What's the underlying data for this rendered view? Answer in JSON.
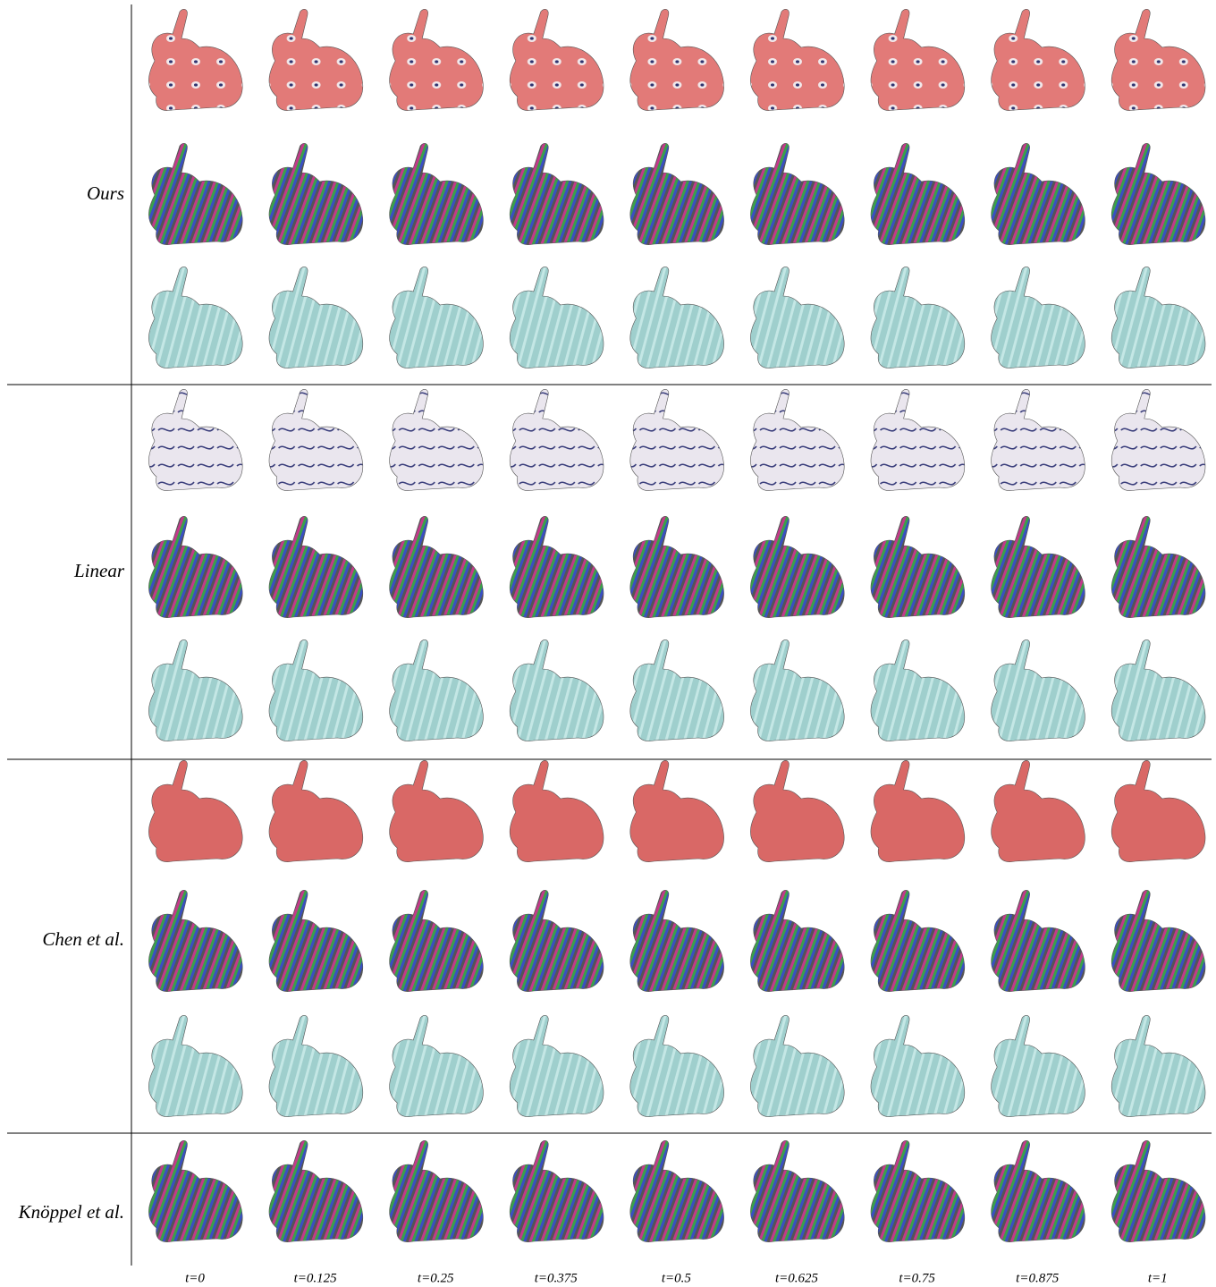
{
  "row_labels": [
    "Ours",
    "Linear",
    "Chen et al.",
    "Knöppel et al."
  ],
  "column_labels": [
    "t=0",
    "t=0.125",
    "t=0.25",
    "t=0.375",
    "t=0.5",
    "t=0.625",
    "t=0.75",
    "t=0.875",
    "t=1"
  ]
}
